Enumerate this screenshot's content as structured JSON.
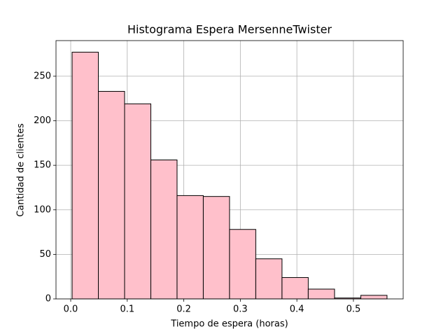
{
  "chart_data": {
    "type": "histogram",
    "title": "Histograma Espera MersenneTwister",
    "x_label": "Tiempo de espera (horas)",
    "y_label": "Cantidad de clientes",
    "bins": [
      0.0025,
      0.0489,
      0.0953,
      0.1417,
      0.1881,
      0.2345,
      0.2809,
      0.3273,
      0.3737,
      0.4201,
      0.4666,
      0.513,
      0.5594
    ],
    "counts": [
      277,
      233,
      219,
      156,
      116,
      115,
      78,
      45,
      24,
      11,
      1,
      4
    ],
    "color": "#ffc0cb",
    "edgecolor": "#000000",
    "xlim": [
      -0.026,
      0.588
    ],
    "ylim": [
      0,
      290
    ],
    "xticks": [
      {
        "value": 0,
        "label": "0.0"
      },
      0.1,
      0.2,
      0.3,
      0.4,
      0.5
    ],
    "yticks": [
      0,
      50,
      100,
      150,
      200,
      250
    ],
    "grid": true
  }
}
